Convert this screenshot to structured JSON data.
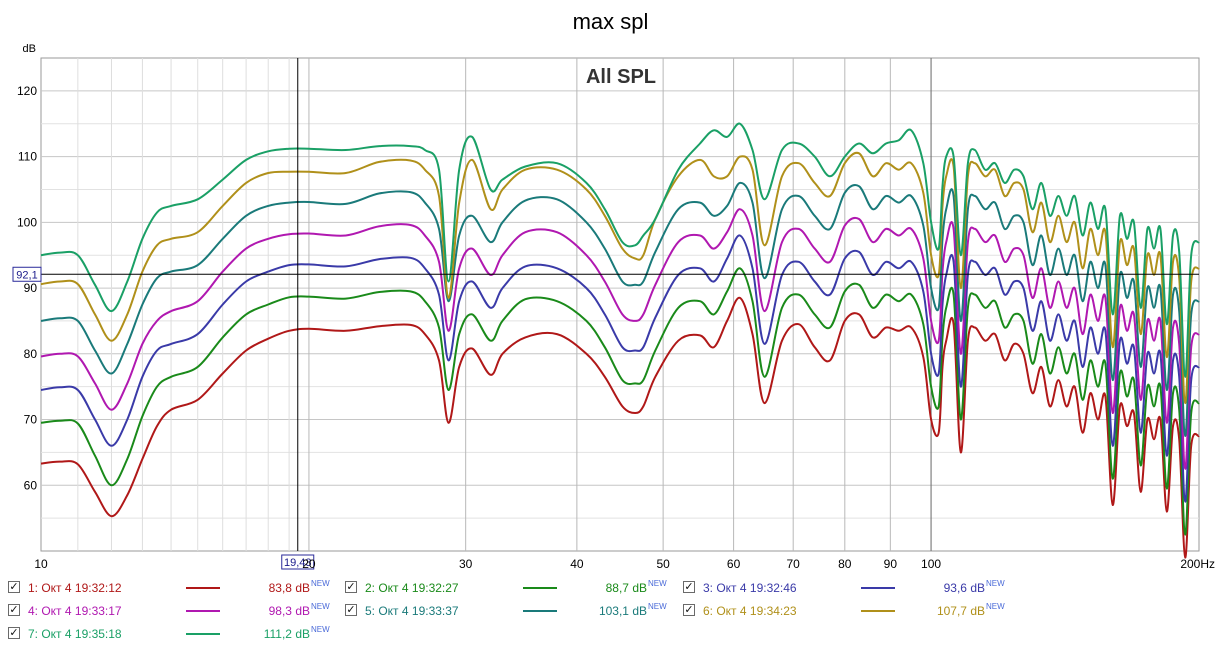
{
  "chart_data": {
    "type": "line",
    "title": "max spl",
    "subtitle": "All SPL",
    "ylabel": "dB",
    "xunit": "Hz",
    "xscale": "log",
    "xlim": [
      10,
      200
    ],
    "ylim": [
      50,
      125
    ],
    "grid": true,
    "legend_position": "bottom",
    "x_ticks": [
      "10",
      "20",
      "30",
      "40",
      "50",
      "60",
      "70",
      "80",
      "90",
      "100",
      "200Hz"
    ],
    "y_ticks": [
      "60",
      "70",
      "80",
      "90",
      "100",
      "110",
      "120"
    ],
    "cursor": {
      "x_label": "19,43",
      "y_label": "92,1",
      "x": 19.43,
      "y": 92.1
    },
    "x": [
      10,
      10.5,
      11,
      11.5,
      12,
      12.5,
      13,
      13.5,
      14,
      15,
      16,
      17,
      18,
      19,
      20,
      22,
      24,
      26,
      27,
      28,
      28.7,
      29.5,
      30.5,
      32,
      33,
      35,
      38,
      41,
      43,
      45,
      46.5,
      47.5,
      49,
      52,
      55,
      57,
      59,
      61,
      63,
      65,
      68,
      71,
      74,
      77,
      80,
      83,
      86,
      89,
      92,
      95,
      98,
      100,
      102,
      103,
      104,
      106,
      108,
      110,
      112,
      115,
      118,
      121,
      124,
      127,
      130,
      133,
      136,
      139,
      142,
      145,
      148,
      151,
      154,
      157,
      160,
      163,
      166,
      169,
      172,
      175,
      178,
      181,
      184,
      187,
      190,
      193,
      196,
      200
    ],
    "series": [
      {
        "name": "1: Окт 4 19:32:12",
        "legend_value": "83,8 dB",
        "legend_badge": "NEW",
        "color": "#b01818",
        "values": [
          63.3,
          63.6,
          63.2,
          59.0,
          55.3,
          58.5,
          64.0,
          69.0,
          71.5,
          73.0,
          77.0,
          80.5,
          82.3,
          83.5,
          83.8,
          83.5,
          84.2,
          84.4,
          83.0,
          79.0,
          69.5,
          78.0,
          80.8,
          76.8,
          80.0,
          82.5,
          83.0,
          80.0,
          76.5,
          72.0,
          71.0,
          72.0,
          76.5,
          82.0,
          82.8,
          81.0,
          85.0,
          88.5,
          83.0,
          72.5,
          82.0,
          84.5,
          81.0,
          79.0,
          85.0,
          86.0,
          82.5,
          84.0,
          83.5,
          84.0,
          79.5,
          70.0,
          68.0,
          78.0,
          82.0,
          84.5,
          65.0,
          82.0,
          84.0,
          82.0,
          83.0,
          79.0,
          81.5,
          80.0,
          74.0,
          78.0,
          72.0,
          76.0,
          72.0,
          75.0,
          68.0,
          74.0,
          70.0,
          73.5,
          57.0,
          72.0,
          69.0,
          71.0,
          59.0,
          70.0,
          67.0,
          70.0,
          56.0,
          69.0,
          67.0,
          49.0,
          66.0,
          67.5
        ]
      },
      {
        "name": "2: Окт 4 19:32:27",
        "legend_value": "88,7 dB",
        "legend_badge": "NEW",
        "color": "#1a8a1a",
        "values": [
          69.5,
          69.8,
          69.4,
          64.5,
          60.0,
          64.0,
          70.5,
          75.0,
          76.5,
          78.0,
          82.5,
          86.0,
          87.5,
          88.6,
          88.7,
          88.4,
          89.4,
          89.5,
          88.0,
          84.0,
          74.5,
          83.0,
          86.0,
          82.0,
          85.0,
          88.3,
          88.0,
          85.0,
          81.0,
          76.0,
          75.5,
          76.0,
          80.5,
          87.0,
          88.0,
          86.0,
          89.5,
          93.0,
          88.0,
          76.5,
          87.0,
          89.0,
          86.0,
          84.0,
          89.5,
          90.5,
          87.0,
          89.0,
          88.0,
          89.0,
          84.5,
          75.0,
          72.0,
          82.5,
          87.0,
          89.0,
          70.0,
          87.0,
          89.0,
          87.0,
          88.0,
          84.0,
          86.0,
          85.0,
          78.5,
          83.0,
          77.0,
          81.0,
          77.0,
          80.0,
          73.0,
          79.0,
          75.0,
          78.5,
          61.0,
          77.0,
          73.5,
          76.0,
          63.0,
          75.0,
          72.0,
          75.0,
          59.5,
          74.0,
          71.5,
          52.5,
          71.0,
          72.5
        ]
      },
      {
        "name": "3: Окт 4 19:32:46",
        "legend_value": "93,6 dB",
        "legend_badge": "NEW",
        "color": "#3a3aa8",
        "values": [
          74.5,
          74.9,
          74.5,
          70.0,
          66.0,
          70.0,
          76.5,
          80.5,
          81.5,
          83.0,
          87.5,
          91.0,
          92.5,
          93.5,
          93.6,
          93.3,
          94.4,
          94.6,
          93.0,
          89.0,
          79.0,
          88.0,
          91.0,
          87.0,
          90.0,
          93.3,
          93.0,
          90.0,
          86.0,
          81.0,
          80.5,
          81.0,
          85.5,
          92.0,
          93.0,
          91.0,
          94.5,
          98.0,
          93.0,
          81.5,
          92.0,
          94.0,
          91.0,
          89.0,
          94.5,
          95.5,
          92.0,
          94.0,
          93.0,
          94.0,
          89.5,
          80.0,
          77.0,
          87.5,
          92.0,
          94.0,
          75.0,
          92.0,
          94.0,
          92.0,
          93.0,
          89.0,
          91.0,
          90.0,
          83.5,
          88.0,
          82.0,
          86.0,
          82.0,
          85.0,
          78.0,
          84.0,
          80.0,
          83.5,
          66.0,
          82.0,
          78.5,
          81.0,
          68.0,
          80.0,
          77.0,
          80.0,
          64.5,
          79.0,
          76.5,
          57.5,
          76.0,
          78.0
        ]
      },
      {
        "name": "4: Окт 4 19:33:17",
        "legend_value": "98,3 dB",
        "legend_badge": "NEW",
        "color": "#b018b0",
        "values": [
          79.6,
          80.0,
          79.6,
          75.5,
          71.5,
          75.5,
          81.5,
          85.0,
          86.5,
          88.0,
          92.5,
          96.0,
          97.5,
          98.2,
          98.3,
          98.0,
          99.4,
          99.6,
          98.0,
          94.0,
          83.5,
          93.0,
          96.0,
          92.0,
          95.0,
          98.5,
          98.5,
          95.0,
          91.0,
          86.0,
          85.0,
          86.0,
          90.5,
          97.0,
          98.0,
          96.0,
          98.5,
          102.0,
          98.0,
          86.5,
          97.0,
          99.0,
          96.0,
          94.0,
          99.5,
          100.5,
          97.0,
          99.0,
          98.0,
          99.0,
          94.5,
          85.0,
          82.0,
          92.5,
          97.0,
          99.0,
          80.0,
          97.0,
          99.0,
          97.0,
          98.0,
          94.0,
          96.0,
          95.0,
          88.5,
          93.0,
          87.0,
          91.0,
          87.0,
          90.0,
          83.0,
          89.0,
          85.0,
          88.5,
          71.0,
          87.0,
          83.5,
          86.0,
          73.0,
          85.0,
          82.0,
          85.0,
          69.5,
          84.0,
          81.5,
          62.5,
          81.0,
          83.0
        ]
      },
      {
        "name": "5: Окт 4 19:33:37",
        "legend_value": "103,1 dB",
        "legend_badge": "NEW",
        "color": "#1a7a7a",
        "values": [
          85.0,
          85.4,
          85.0,
          80.5,
          77.0,
          81.5,
          87.5,
          91.5,
          92.5,
          93.5,
          97.5,
          101.0,
          102.5,
          103.0,
          103.1,
          102.8,
          104.4,
          104.6,
          103.0,
          99.0,
          88.0,
          98.0,
          101.0,
          97.0,
          100.0,
          103.3,
          103.5,
          100.0,
          96.0,
          91.0,
          90.5,
          91.0,
          95.5,
          102.0,
          103.0,
          101.0,
          102.5,
          106.0,
          103.0,
          91.5,
          102.0,
          104.0,
          101.0,
          99.0,
          104.5,
          105.5,
          102.0,
          104.0,
          103.0,
          104.0,
          99.5,
          90.0,
          87.0,
          97.5,
          102.0,
          104.0,
          85.0,
          102.0,
          104.0,
          102.0,
          103.0,
          99.0,
          101.0,
          100.0,
          93.5,
          98.0,
          92.0,
          96.0,
          92.0,
          95.0,
          88.0,
          94.0,
          90.0,
          93.5,
          76.0,
          92.0,
          88.5,
          91.0,
          78.0,
          90.0,
          87.0,
          90.0,
          74.5,
          89.0,
          86.5,
          67.5,
          86.0,
          88.0
        ]
      },
      {
        "name": "6: Окт 4 19:34:23",
        "legend_value": "107,7 dB",
        "legend_badge": "NEW",
        "color": "#b0901a",
        "values": [
          90.6,
          91.0,
          90.6,
          86.0,
          82.0,
          86.0,
          92.5,
          96.5,
          97.5,
          98.5,
          102.5,
          106.0,
          107.5,
          107.7,
          107.7,
          107.5,
          109.2,
          109.4,
          108.0,
          104.0,
          88.5,
          103.0,
          109.5,
          102.0,
          105.0,
          108.0,
          108.0,
          105.0,
          101.0,
          96.0,
          94.5,
          95.0,
          100.5,
          107.0,
          109.5,
          107.0,
          107.0,
          110.0,
          108.0,
          96.5,
          107.0,
          109.0,
          106.0,
          104.0,
          109.0,
          110.5,
          107.0,
          109.0,
          108.0,
          109.0,
          104.5,
          95.0,
          92.0,
          102.5,
          107.0,
          108.5,
          90.0,
          107.0,
          109.0,
          107.0,
          108.0,
          104.0,
          106.0,
          105.0,
          98.5,
          103.0,
          97.0,
          101.0,
          97.0,
          100.0,
          93.0,
          99.0,
          95.0,
          98.5,
          81.0,
          97.0,
          93.5,
          96.0,
          83.0,
          95.0,
          92.0,
          95.0,
          79.5,
          94.0,
          91.5,
          72.5,
          91.0,
          93.0
        ]
      },
      {
        "name": "7: Окт 4 19:35:18",
        "legend_value": "111,2 dB",
        "legend_badge": "NEW",
        "color": "#1aa066",
        "values": [
          95.0,
          95.4,
          95.0,
          90.5,
          86.5,
          91.0,
          97.5,
          101.5,
          102.5,
          103.5,
          106.5,
          109.5,
          110.8,
          111.2,
          111.2,
          111.0,
          111.6,
          111.6,
          111.0,
          108.0,
          91.0,
          108.0,
          113.0,
          105.0,
          106.5,
          108.5,
          109.0,
          106.0,
          102.0,
          97.0,
          96.5,
          98.0,
          100.5,
          108.0,
          112.0,
          114.0,
          113.0,
          115.0,
          111.0,
          103.5,
          111.0,
          112.0,
          110.0,
          107.0,
          110.0,
          112.0,
          110.5,
          112.0,
          112.5,
          114.0,
          109.0,
          100.0,
          96.0,
          105.5,
          110.0,
          110.0,
          95.0,
          109.0,
          111.0,
          108.0,
          109.0,
          106.0,
          108.0,
          107.0,
          102.0,
          106.0,
          101.0,
          104.0,
          101.0,
          104.0,
          98.0,
          103.0,
          99.0,
          102.0,
          86.0,
          101.0,
          97.5,
          100.0,
          87.0,
          99.0,
          96.0,
          99.0,
          84.5,
          98.0,
          95.5,
          76.5,
          95.0,
          97.0
        ]
      }
    ]
  }
}
